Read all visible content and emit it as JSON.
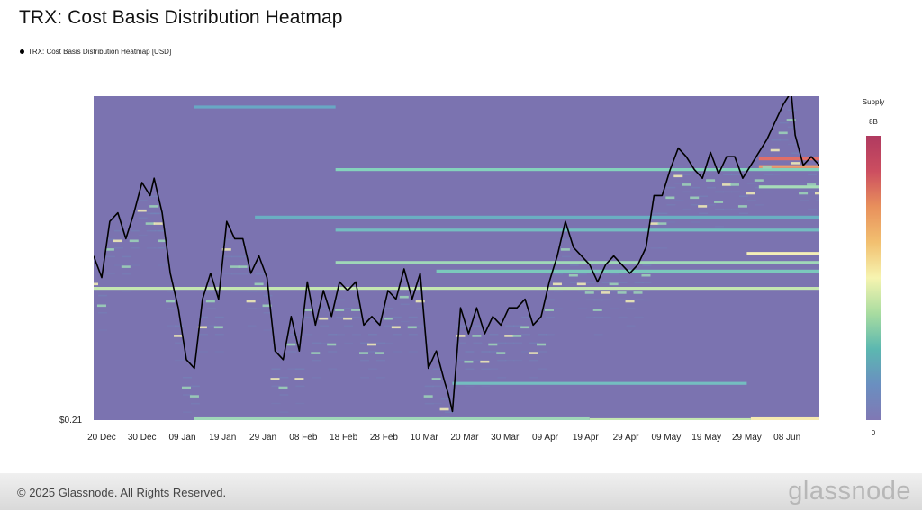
{
  "title": "TRX: Cost Basis Distribution Heatmap",
  "legend": {
    "label": "TRX: Cost Basis Distribution Heatmap [USD]",
    "color": "#000000"
  },
  "footer": {
    "copyright": "© 2025 Glassnode. All Rights Reserved.",
    "brand": "glassnode"
  },
  "colorbar": {
    "title": "Supply",
    "max_label": "8B",
    "min_label": "0",
    "stops": [
      "#8078b4",
      "#6a8fc0",
      "#5cb8b0",
      "#a8dca0",
      "#f6f4b0",
      "#f2c070",
      "#e8905c",
      "#cc4e60",
      "#b03a60"
    ]
  },
  "chart_data": {
    "type": "heatmap",
    "title": "TRX: Cost Basis Distribution Heatmap",
    "x_start": "2024-12-18",
    "x_end": "2025-06-16",
    "x_ticks": [
      "20 Dec",
      "30 Dec",
      "09 Jan",
      "19 Jan",
      "29 Jan",
      "08 Feb",
      "18 Feb",
      "28 Feb",
      "10 Mar",
      "20 Mar",
      "30 Mar",
      "09 Apr",
      "19 Apr",
      "29 Apr",
      "09 May",
      "19 May",
      "29 May",
      "08 Jun"
    ],
    "x_tick_dates": [
      "2024-12-20",
      "2024-12-30",
      "2025-01-09",
      "2025-01-19",
      "2025-01-29",
      "2025-02-08",
      "2025-02-18",
      "2025-02-28",
      "2025-03-10",
      "2025-03-20",
      "2025-03-30",
      "2025-04-09",
      "2025-04-19",
      "2025-04-29",
      "2025-05-09",
      "2025-05-19",
      "2025-05-29",
      "2025-06-08"
    ],
    "y_tick_label": "$0.21",
    "ylim": [
      0.21,
      0.285
    ],
    "background_color": "#7b73b0",
    "price_series": {
      "name": "TRX: Cost Basis Distribution Heatmap [USD]",
      "dates": [
        "2024-12-18",
        "2024-12-20",
        "2024-12-22",
        "2024-12-24",
        "2024-12-26",
        "2024-12-28",
        "2024-12-30",
        "2025-01-01",
        "2025-01-02",
        "2025-01-03",
        "2025-01-04",
        "2025-01-06",
        "2025-01-08",
        "2025-01-10",
        "2025-01-12",
        "2025-01-14",
        "2025-01-16",
        "2025-01-18",
        "2025-01-20",
        "2025-01-22",
        "2025-01-24",
        "2025-01-26",
        "2025-01-28",
        "2025-01-30",
        "2025-02-01",
        "2025-02-03",
        "2025-02-05",
        "2025-02-07",
        "2025-02-09",
        "2025-02-11",
        "2025-02-13",
        "2025-02-15",
        "2025-02-17",
        "2025-02-19",
        "2025-02-21",
        "2025-02-23",
        "2025-02-25",
        "2025-02-27",
        "2025-03-01",
        "2025-03-03",
        "2025-03-05",
        "2025-03-07",
        "2025-03-09",
        "2025-03-11",
        "2025-03-13",
        "2025-03-15",
        "2025-03-16",
        "2025-03-17",
        "2025-03-19",
        "2025-03-21",
        "2025-03-23",
        "2025-03-25",
        "2025-03-27",
        "2025-03-29",
        "2025-03-31",
        "2025-04-02",
        "2025-04-04",
        "2025-04-06",
        "2025-04-08",
        "2025-04-10",
        "2025-04-12",
        "2025-04-14",
        "2025-04-16",
        "2025-04-18",
        "2025-04-20",
        "2025-04-22",
        "2025-04-24",
        "2025-04-26",
        "2025-04-28",
        "2025-04-30",
        "2025-05-02",
        "2025-05-04",
        "2025-05-06",
        "2025-05-08",
        "2025-05-10",
        "2025-05-12",
        "2025-05-14",
        "2025-05-16",
        "2025-05-18",
        "2025-05-20",
        "2025-05-22",
        "2025-05-24",
        "2025-05-26",
        "2025-05-28",
        "2025-05-30",
        "2025-06-01",
        "2025-06-03",
        "2025-06-05",
        "2025-06-07",
        "2025-06-09",
        "2025-06-10",
        "2025-06-12",
        "2025-06-14",
        "2025-06-16"
      ],
      "values": [
        0.248,
        0.243,
        0.256,
        0.258,
        0.252,
        0.258,
        0.265,
        0.262,
        0.266,
        0.262,
        0.258,
        0.244,
        0.236,
        0.224,
        0.222,
        0.238,
        0.244,
        0.238,
        0.256,
        0.252,
        0.252,
        0.244,
        0.248,
        0.243,
        0.226,
        0.224,
        0.234,
        0.226,
        0.242,
        0.232,
        0.24,
        0.234,
        0.242,
        0.24,
        0.242,
        0.232,
        0.234,
        0.232,
        0.24,
        0.238,
        0.245,
        0.238,
        0.244,
        0.222,
        0.226,
        0.219,
        0.216,
        0.212,
        0.236,
        0.23,
        0.236,
        0.23,
        0.234,
        0.232,
        0.236,
        0.236,
        0.238,
        0.232,
        0.234,
        0.242,
        0.248,
        0.256,
        0.25,
        0.248,
        0.246,
        0.242,
        0.246,
        0.248,
        0.246,
        0.244,
        0.246,
        0.25,
        0.262,
        0.262,
        0.268,
        0.273,
        0.271,
        0.268,
        0.266,
        0.272,
        0.267,
        0.271,
        0.271,
        0.266,
        0.269,
        0.272,
        0.275,
        0.279,
        0.283,
        0.286,
        0.276,
        0.269,
        0.271,
        0.269
      ]
    },
    "bands": [
      {
        "start": "2025-01-12",
        "end": "2025-02-16",
        "price": 0.2825,
        "color": "#68a8c4"
      },
      {
        "start": "2025-02-16",
        "end": "2025-06-16",
        "price": 0.268,
        "color": "#84d2bc"
      },
      {
        "start": "2025-01-27",
        "end": "2025-06-16",
        "price": 0.257,
        "color": "#6aaec2"
      },
      {
        "start": "2025-02-16",
        "end": "2025-06-16",
        "price": 0.254,
        "color": "#74bdc0"
      },
      {
        "start": "2025-05-29",
        "end": "2025-06-16",
        "price": 0.2486,
        "color": "#f4efb8"
      },
      {
        "start": "2025-02-16",
        "end": "2025-06-16",
        "price": 0.2465,
        "color": "#9fd7b8"
      },
      {
        "start": "2025-03-13",
        "end": "2025-06-16",
        "price": 0.2445,
        "color": "#7bc8bc"
      },
      {
        "start": "2024-12-18",
        "end": "2025-06-16",
        "price": 0.2405,
        "color": "#c4e6b0"
      },
      {
        "start": "2025-03-17",
        "end": "2025-05-29",
        "price": 0.2185,
        "color": "#74bdc0"
      },
      {
        "start": "2025-01-12",
        "end": "2025-04-20",
        "price": 0.2103,
        "color": "#9fd7b8"
      },
      {
        "start": "2025-04-20",
        "end": "2025-05-30",
        "price": 0.2101,
        "color": "#c4e6b0"
      },
      {
        "start": "2025-05-30",
        "end": "2025-06-16",
        "price": 0.2103,
        "color": "#f6eab0"
      },
      {
        "start": "2025-06-01",
        "end": "2025-06-16",
        "price": 0.2705,
        "color": "#e06e68"
      },
      {
        "start": "2025-06-01",
        "end": "2025-06-16",
        "price": 0.2687,
        "color": "#ec9c6c"
      },
      {
        "start": "2025-06-01",
        "end": "2025-06-16",
        "price": 0.264,
        "color": "#a6dcb8"
      }
    ]
  }
}
